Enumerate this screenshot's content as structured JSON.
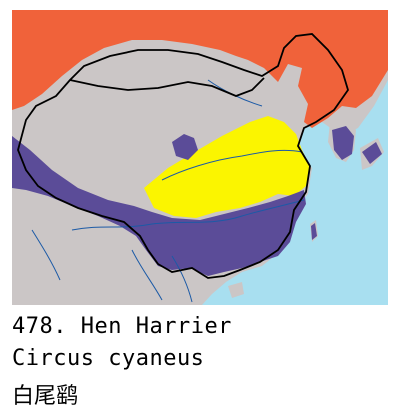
{
  "caption": {
    "number": "478.",
    "common_name": "Hen Harrier",
    "scientific_name": "Circus cyaneus",
    "chinese_name": "白尾鹞"
  },
  "map": {
    "colors": {
      "sea": "#a8dff0",
      "land": "#cbc6c6",
      "breeding_range": "#f0623a",
      "passage_range": "#fbf500",
      "winter_range": "#5b4c98",
      "rivers": "#1c5aa6",
      "borders": "#000000"
    }
  }
}
